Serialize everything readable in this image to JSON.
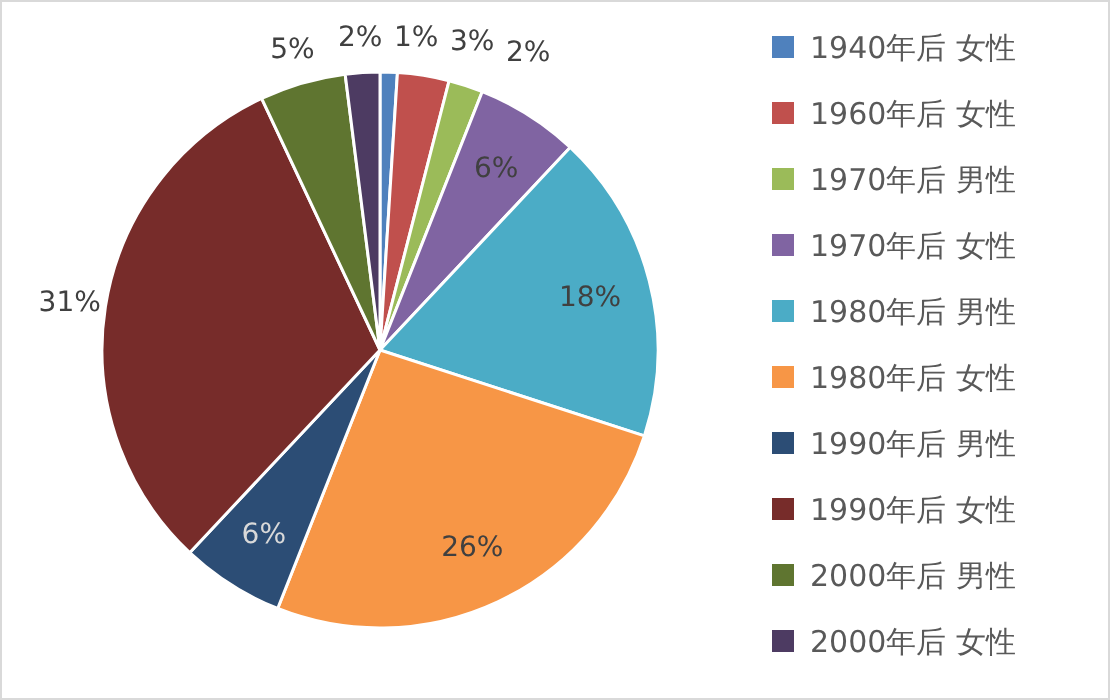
{
  "chart_data": {
    "type": "pie",
    "categories": [
      "1940年后 女性",
      "1960年后 女性",
      "1970年后 男性",
      "1970年后 女性",
      "1980年后 男性",
      "1980年后 女性",
      "1990年后 男性",
      "1990年后 女性",
      "2000年后 男性",
      "2000年后 女性"
    ],
    "values": [
      1,
      3,
      2,
      6,
      18,
      26,
      6,
      31,
      5,
      2
    ],
    "value_labels": [
      "1%",
      "3%",
      "2%",
      "6%",
      "18%",
      "26%",
      "6%",
      "31%",
      "5%",
      "2%"
    ],
    "colors": [
      "#4f81bd",
      "#c0504d",
      "#9bbb59",
      "#8064a2",
      "#4bacc6",
      "#f79646",
      "#2c4d75",
      "#772c2a",
      "#5f7530",
      "#4d3b62"
    ],
    "legend": "right"
  }
}
